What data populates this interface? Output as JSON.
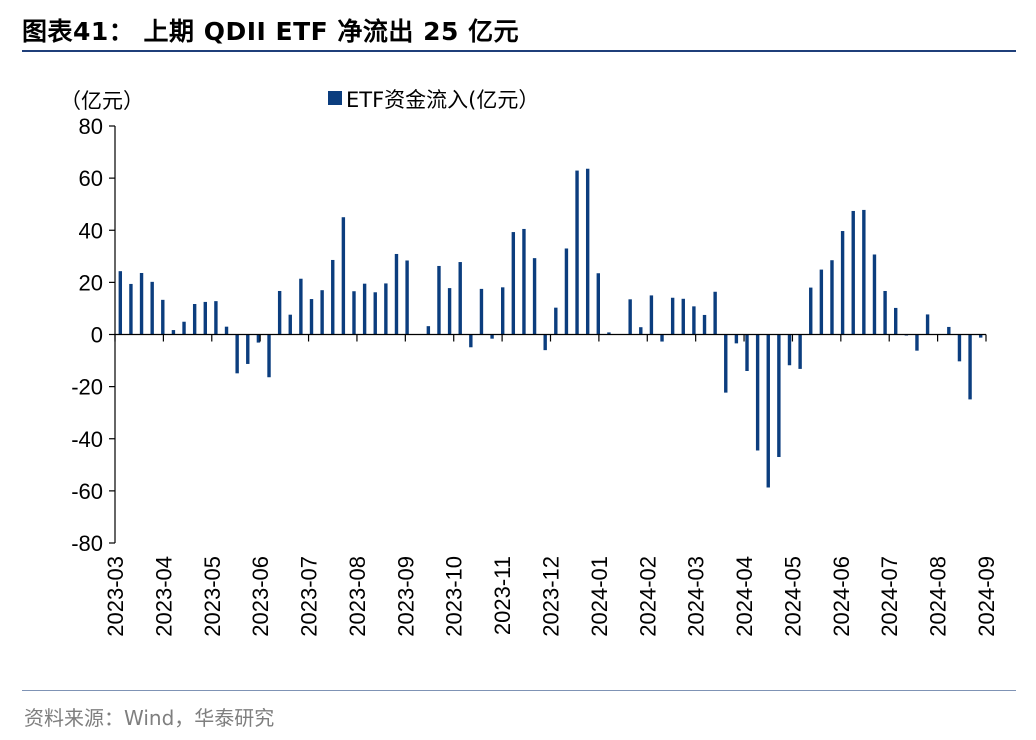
{
  "header": {
    "title": "图表41：  上期 QDII ETF 净流出 25 亿元"
  },
  "footer": {
    "source": "资料来源：Wind，华泰研究"
  },
  "colors": {
    "bar": "#0b3d7e",
    "rule": "#1f3f7a"
  },
  "chart_data": {
    "type": "bar",
    "unit_label": "（亿元）",
    "ylim": [
      -80,
      80
    ],
    "y_ticks": [
      80,
      60,
      40,
      20,
      0,
      -20,
      -40,
      -60,
      -80
    ],
    "x_tick_labels": [
      "2023-03",
      "2023-04",
      "2023-05",
      "2023-06",
      "2023-07",
      "2023-08",
      "2023-09",
      "2023-10",
      "2023-11",
      "2023-12",
      "2024-01",
      "2024-02",
      "2024-03",
      "2024-04",
      "2024-05",
      "2024-06",
      "2024-07",
      "2024-08",
      "2024-09"
    ],
    "series": [
      {
        "name": "ETF资金流入(亿元）",
        "values": [
          24.3,
          19.4,
          23.6,
          20.2,
          13.3,
          1.7,
          4.9,
          11.7,
          12.5,
          12.8,
          3.0,
          -14.9,
          -11.3,
          -3.1,
          -16.4,
          16.7,
          7.6,
          21.4,
          13.6,
          17.0,
          28.6,
          45.0,
          16.6,
          19.5,
          16.2,
          19.6,
          30.9,
          28.4,
          0.0,
          3.2,
          26.3,
          17.8,
          27.8,
          -4.9,
          17.5,
          -1.6,
          18.1,
          39.3,
          40.5,
          29.3,
          -6.0,
          10.3,
          33.0,
          62.9,
          63.6,
          23.5,
          0.8,
          0.0,
          13.5,
          2.8,
          15.0,
          -2.7,
          14.1,
          13.7,
          10.8,
          7.5,
          16.4,
          -22.3,
          -3.4,
          -14.0,
          -44.5,
          -58.7,
          -47.0,
          -11.8,
          -13.2,
          18.0,
          24.9,
          28.5,
          39.7,
          47.4,
          47.8,
          30.7,
          16.7,
          10.2,
          -0.4,
          -6.2,
          7.7,
          0.0,
          2.9,
          -10.3,
          -24.9,
          -1.2
        ]
      }
    ]
  }
}
